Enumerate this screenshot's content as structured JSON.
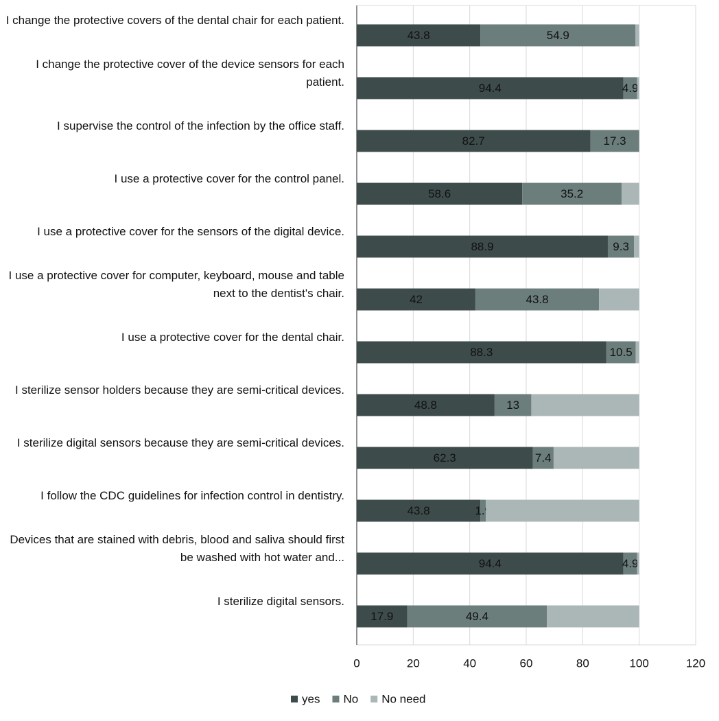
{
  "chart_data": {
    "type": "stacked-barh",
    "categories": [
      "I change the protective covers of the dental chair for each patient.",
      "I change the protective cover of the device sensors for each patient.",
      "I supervise the control of the infection by the office staff.",
      "I use a protective cover for the control panel.",
      "I use a protective cover for the sensors of the digital device.",
      "I use a protective cover for computer, keyboard, mouse and table next to the dentist's chair.",
      "I use a protective cover for the dental chair.",
      "I sterilize sensor holders because they are semi-critical devices.",
      "I sterilize digital sensors because they are semi-critical devices.",
      "I follow the CDC guidelines for infection control in dentistry.",
      "Devices that are stained with debris, blood and saliva should first be washed with hot water and...",
      "I sterilize digital sensors."
    ],
    "series": [
      {
        "name": "yes",
        "color": "#3e4b4b",
        "labels": true,
        "values": [
          43.8,
          94.4,
          82.7,
          58.6,
          88.9,
          42,
          88.3,
          48.8,
          62.3,
          43.8,
          94.4,
          17.9
        ]
      },
      {
        "name": "No",
        "color": "#6c7e7c",
        "labels": true,
        "values": [
          54.9,
          4.9,
          17.3,
          35.2,
          9.3,
          43.8,
          10.5,
          13,
          7.4,
          1.9,
          4.9,
          49.4
        ]
      },
      {
        "name": "No need",
        "color": "#abb7b6",
        "labels": false,
        "values": [
          1.3,
          0.7,
          0,
          6.2,
          1.8,
          14.2,
          1.2,
          38.2,
          30.3,
          54.3,
          0.7,
          32.7
        ]
      }
    ],
    "xlim": [
      0,
      120
    ],
    "xticks": [
      0,
      20,
      40,
      60,
      80,
      100,
      120
    ],
    "grid": true,
    "legend": "bottom"
  }
}
